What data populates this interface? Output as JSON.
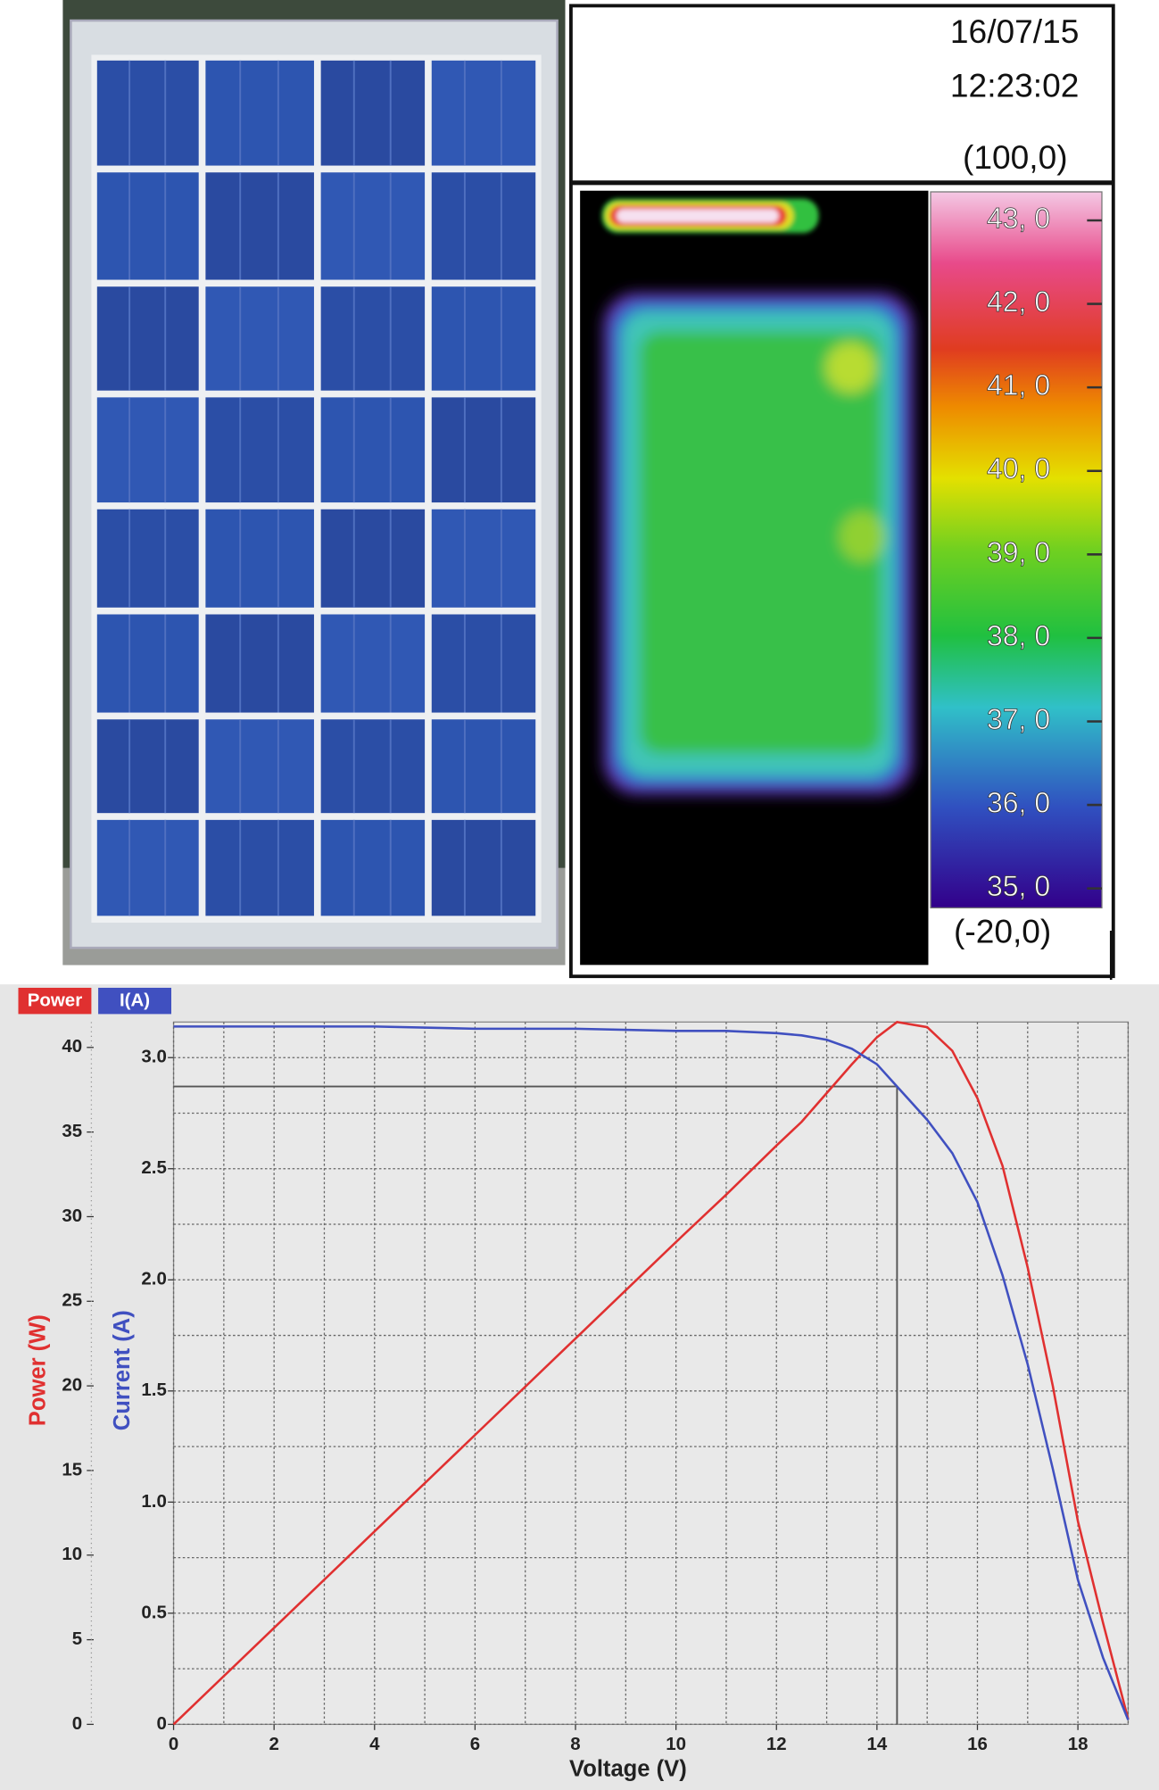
{
  "thermal": {
    "date": "16/07/15",
    "time": "12:23:02",
    "max_label": "(100,0)",
    "min_label": "(-20,0)",
    "scale_labels": [
      "43, 0",
      "42, 0",
      "41, 0",
      "40, 0",
      "39, 0",
      "38, 0",
      "37, 0",
      "36, 0",
      "35, 0"
    ]
  },
  "chart_data": {
    "type": "line",
    "xlabel": "Voltage (V)",
    "ylabel": "Current (A)",
    "y2label": "Power (W)",
    "x": [
      0,
      2,
      4,
      6,
      8,
      10,
      11,
      12,
      12.5,
      13,
      13.5,
      14,
      14.4,
      15,
      15.5,
      16,
      16.5,
      17,
      17.5,
      18,
      18.5,
      19
    ],
    "series": [
      {
        "name": "Power",
        "color": "#e03030",
        "axis": "y2",
        "values": [
          0,
          5.7,
          11.4,
          17.1,
          22.8,
          28.5,
          31.3,
          34.2,
          35.6,
          37.3,
          39,
          40.6,
          41.5,
          41.2,
          39.8,
          37,
          33,
          27,
          20,
          12,
          6,
          0.3
        ]
      },
      {
        "name": "I(A)",
        "color": "#4050c0",
        "values": [
          3.14,
          3.14,
          3.14,
          3.13,
          3.13,
          3.12,
          3.12,
          3.11,
          3.1,
          3.08,
          3.04,
          2.97,
          2.87,
          2.72,
          2.57,
          2.35,
          2.02,
          1.62,
          1.15,
          0.65,
          0.3,
          0.02
        ]
      }
    ],
    "mpp": {
      "voltage": 14.4,
      "current": 2.87
    },
    "xlim": [
      0,
      19
    ],
    "xticks": [
      0,
      2,
      4,
      6,
      8,
      10,
      12,
      14,
      16,
      18
    ],
    "xminorticks": [
      1,
      3,
      5,
      7,
      9,
      11,
      13,
      15,
      17,
      19
    ],
    "ylim": [
      0,
      3.16
    ],
    "yticks": [
      0,
      0.5,
      {
        "value": 1,
        "label": "1.0"
      },
      1.5,
      {
        "value": 2,
        "label": "2.0"
      },
      2.5,
      {
        "value": 3,
        "label": "3.0"
      }
    ],
    "yminorticks": [
      0.25,
      0.75,
      1.25,
      1.75,
      2.25,
      2.75
    ],
    "y2lim": [
      0,
      41.5
    ],
    "y2ticks": [
      0,
      5,
      10,
      15,
      20,
      25,
      30,
      35,
      40
    ],
    "grid": true
  }
}
